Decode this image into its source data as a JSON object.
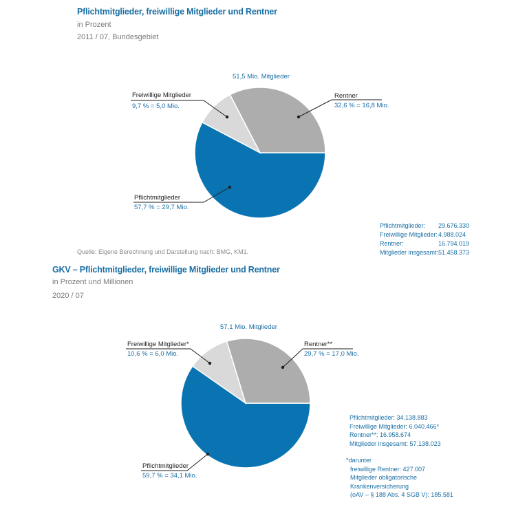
{
  "chart_data": [
    {
      "type": "pie",
      "title": "Pflichtmitglieder, freiwillige Mitglieder und Rentner",
      "subtitle": "in Prozent",
      "period": "2011 / 07, Bundesgebiet",
      "total_label": "51,5 Mio. Mitglieder",
      "slices": [
        {
          "name": "Rentner",
          "value_label": "32,6 % = 16,8 Mio.",
          "percent": 32.6,
          "color": "#adadad"
        },
        {
          "name": "Freiwillige Mitglieder",
          "value_label": "9,7 % = 5,0 Mio.",
          "percent": 9.7,
          "color": "#d9d9d9"
        },
        {
          "name": "Pflichtmitglieder",
          "value_label": "57,7 % = 29,7 Mio.",
          "percent": 57.7,
          "color": "#0a74b3"
        }
      ],
      "source": "Quelle: Eigene Berechnung und Darstellung nach: BMG, KM1.",
      "stats": [
        {
          "label": "Pflichtmitglieder:",
          "value": "29.676.330"
        },
        {
          "label": "Freiwillige Mitglieder:",
          "value": "4.988.024"
        },
        {
          "label": "Rentner:",
          "value": "16.794.019"
        },
        {
          "label": "Mitglieder insgesamt:",
          "value": "51.458.373"
        }
      ]
    },
    {
      "type": "pie",
      "title": "GKV – Pflichtmitglieder, freiwillige Mitglieder und Rentner",
      "subtitle": "in Prozent und Millionen",
      "period": "2020 / 07",
      "total_label": "57,1 Mio. Mitglieder",
      "slices": [
        {
          "name": "Rentner**",
          "value_label": "29,7 % = 17,0 Mio.",
          "percent": 29.7,
          "color": "#adadad"
        },
        {
          "name": "Freiwillige Mitglieder*",
          "value_label": "10,6 % = 6,0 Mio.",
          "percent": 10.6,
          "color": "#d9d9d9"
        },
        {
          "name": "Pflichtmitglieder",
          "value_label": "59,7 % = 34,1 Mio.",
          "percent": 59.7,
          "color": "#0a74b3"
        }
      ],
      "stats_lines": [
        "Pflichtmitglieder: 34.138.883",
        "Freiwillige Mitglieder: 6.040.466*",
        "Rentner**: 16.958.674",
        "Mitglieder insgesamt: 57.138.023"
      ],
      "note_lines": [
        "*darunter",
        "freiwillige Rentner: 427.007",
        "Mitglieder obligatorische",
        "Krankenversicherung",
        "(oAV – § 188 Abs. 4 SGB V): 185.581"
      ]
    }
  ]
}
